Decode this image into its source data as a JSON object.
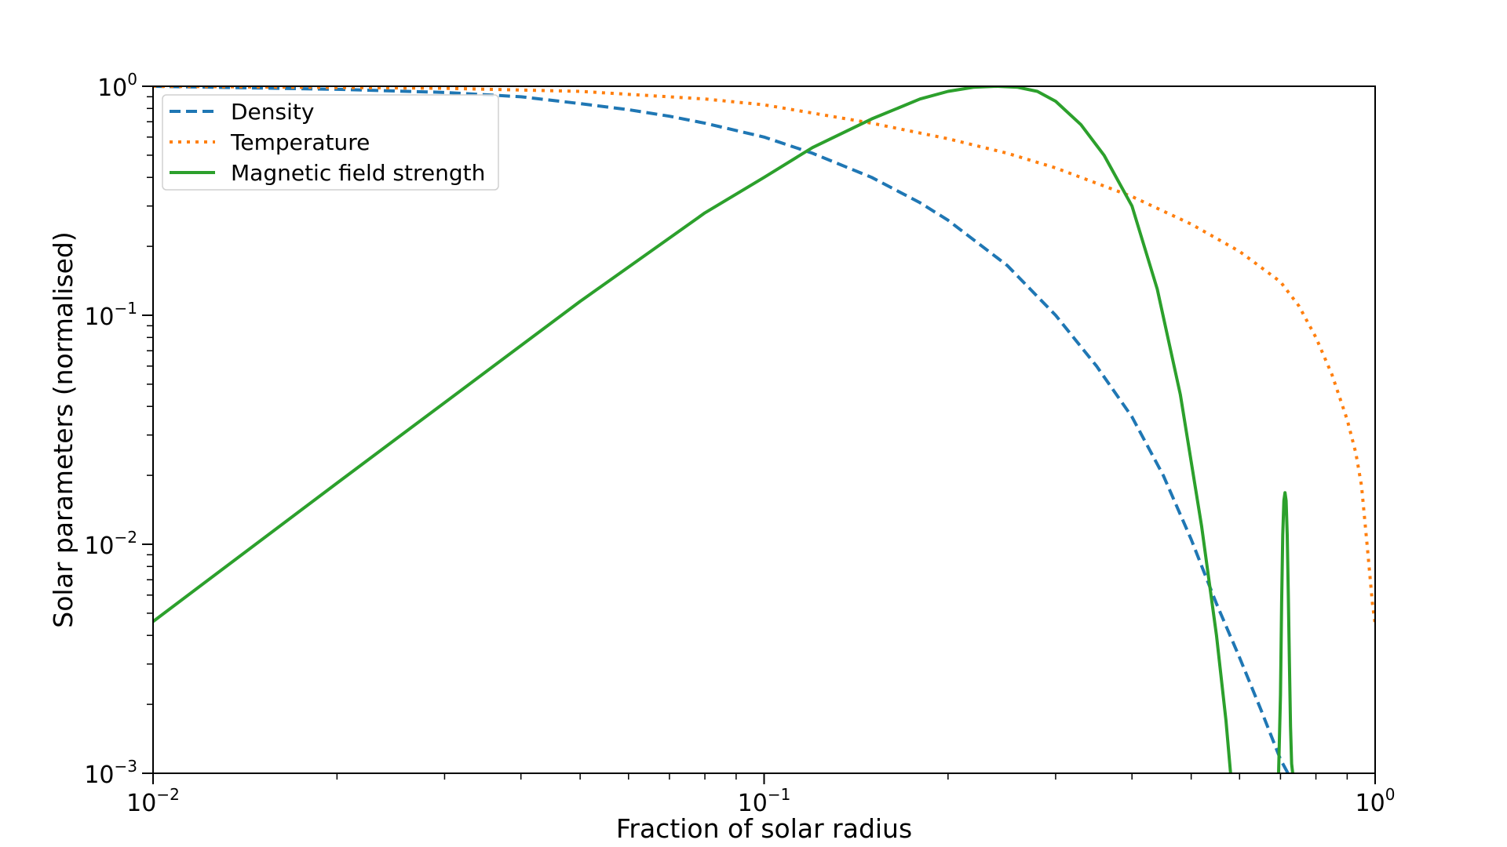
{
  "chart_data": {
    "type": "line",
    "xscale": "log",
    "yscale": "log",
    "xlim": [
      0.01,
      1.0
    ],
    "ylim": [
      0.001,
      1.0
    ],
    "xlabel": "Fraction of solar radius",
    "ylabel": "Solar parameters (normalised)",
    "grid": false,
    "legend_position": "upper-left",
    "x_ticks": [
      {
        "value": 0.01,
        "base": "10",
        "exp": "−2"
      },
      {
        "value": 0.1,
        "base": "10",
        "exp": "−1"
      },
      {
        "value": 1.0,
        "base": "10",
        "exp": "0"
      }
    ],
    "y_ticks": [
      {
        "value": 0.001,
        "base": "10",
        "exp": "−3"
      },
      {
        "value": 0.01,
        "base": "10",
        "exp": "−2"
      },
      {
        "value": 0.1,
        "base": "10",
        "exp": "−1"
      },
      {
        "value": 1.0,
        "base": "10",
        "exp": "0"
      }
    ],
    "series": [
      {
        "name": "Density",
        "color": "#1f77b4",
        "style": "dashed",
        "x": [
          0.01,
          0.02,
          0.03,
          0.04,
          0.05,
          0.06,
          0.07,
          0.08,
          0.1,
          0.12,
          0.15,
          0.18,
          0.2,
          0.25,
          0.3,
          0.35,
          0.4,
          0.45,
          0.5,
          0.55,
          0.6,
          0.65,
          0.7,
          0.72
        ],
        "y": [
          1.0,
          0.97,
          0.94,
          0.9,
          0.84,
          0.79,
          0.74,
          0.69,
          0.6,
          0.51,
          0.4,
          0.31,
          0.26,
          0.165,
          0.1,
          0.06,
          0.036,
          0.02,
          0.0105,
          0.0055,
          0.0032,
          0.0019,
          0.00115,
          0.001
        ]
      },
      {
        "name": "Temperature",
        "color": "#ff7f0e",
        "style": "dotted",
        "x": [
          0.01,
          0.03,
          0.05,
          0.08,
          0.1,
          0.15,
          0.2,
          0.25,
          0.3,
          0.4,
          0.5,
          0.6,
          0.7,
          0.75,
          0.8,
          0.85,
          0.9,
          0.93,
          0.95,
          0.97,
          0.99,
          1.0
        ],
        "y": [
          1.0,
          0.98,
          0.95,
          0.88,
          0.83,
          0.69,
          0.59,
          0.51,
          0.44,
          0.33,
          0.25,
          0.19,
          0.14,
          0.11,
          0.08,
          0.055,
          0.035,
          0.025,
          0.018,
          0.01,
          0.0055,
          0.0045
        ]
      },
      {
        "name": "Magnetic field strength",
        "color": "#2ca02c",
        "style": "solid",
        "x": [
          0.01,
          0.02,
          0.05,
          0.08,
          0.1,
          0.12,
          0.15,
          0.18,
          0.2,
          0.22,
          0.24,
          0.26,
          0.28,
          0.3,
          0.33,
          0.36,
          0.4,
          0.44,
          0.48,
          0.52,
          0.55,
          0.57,
          0.58
        ],
        "y": [
          0.0046,
          0.0185,
          0.115,
          0.28,
          0.4,
          0.54,
          0.72,
          0.88,
          0.95,
          0.99,
          1.0,
          0.99,
          0.95,
          0.86,
          0.68,
          0.5,
          0.3,
          0.13,
          0.045,
          0.012,
          0.004,
          0.0017,
          0.001
        ]
      },
      {
        "name": "",
        "color": "#2ca02c",
        "style": "solid",
        "x": [
          0.695,
          0.7,
          0.703,
          0.706,
          0.709,
          0.712,
          0.715,
          0.718,
          0.721,
          0.724,
          0.727,
          0.73,
          0.733
        ],
        "y": [
          0.001,
          0.0022,
          0.0055,
          0.011,
          0.0155,
          0.0168,
          0.0155,
          0.011,
          0.006,
          0.003,
          0.0016,
          0.0011,
          0.001
        ]
      }
    ]
  }
}
